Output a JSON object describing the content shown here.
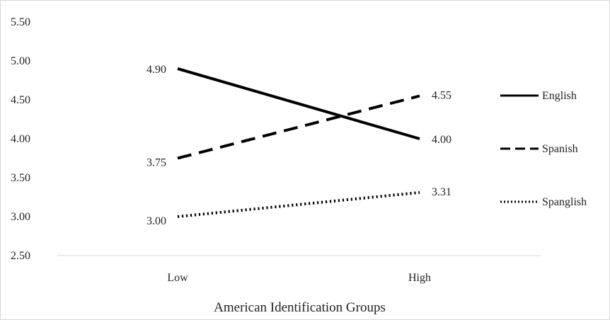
{
  "chart_data": {
    "type": "line",
    "title": "",
    "xlabel": "American Identification Groups",
    "ylabel": "",
    "categories": [
      "Low",
      "High"
    ],
    "ylim": [
      2.5,
      5.5
    ],
    "yticks": [
      2.5,
      3.0,
      3.5,
      4.0,
      4.5,
      5.0,
      5.5
    ],
    "ytick_labels": [
      "2.50",
      "3.00",
      "3.50",
      "4.00",
      "4.50",
      "5.00",
      "5.50"
    ],
    "grid": false,
    "legend": "right",
    "series": [
      {
        "name": "English",
        "values": [
          4.9,
          4.0
        ],
        "labels": [
          "4.90",
          "4.00"
        ],
        "style": "solid",
        "color": "#000000"
      },
      {
        "name": "Spanish",
        "values": [
          3.75,
          4.55
        ],
        "labels": [
          "3.75",
          "4.55"
        ],
        "style": "dashed",
        "color": "#000000"
      },
      {
        "name": "Spanglish",
        "values": [
          3.0,
          3.31
        ],
        "labels": [
          "3.00",
          "3.31"
        ],
        "style": "dotted",
        "color": "#000000"
      }
    ]
  }
}
